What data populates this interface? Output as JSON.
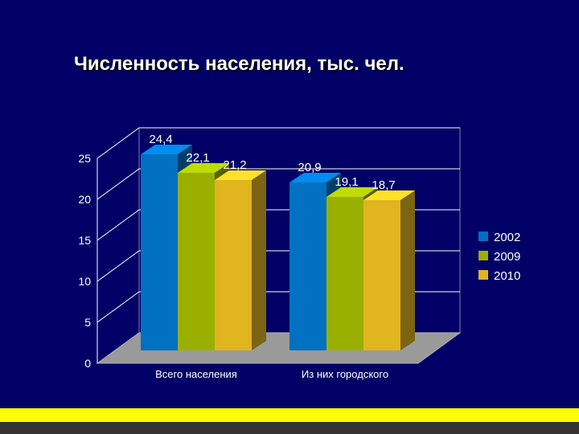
{
  "slide": {
    "title": "Численность населения, тыс. чел."
  },
  "colors": {
    "background": "#000066",
    "series": [
      "#0070c0",
      "#99b000",
      "#e0b520"
    ],
    "bottom_stripe": "#ffff00"
  },
  "chart_data": {
    "type": "bar",
    "style": "3d-clustered-column",
    "title": "",
    "categories": [
      "Всего населения",
      "Из них городского"
    ],
    "series": [
      {
        "name": "2002",
        "values": [
          24.4,
          20.9
        ],
        "labels": [
          "24,4",
          "20,9"
        ]
      },
      {
        "name": "2009",
        "values": [
          22.1,
          19.1
        ],
        "labels": [
          "22,1",
          "19,1"
        ]
      },
      {
        "name": "2010",
        "values": [
          21.2,
          18.7
        ],
        "labels": [
          "21,2",
          "18,7"
        ]
      }
    ],
    "yticks": [
      "0",
      "5",
      "10",
      "15",
      "20",
      "25"
    ],
    "ylim": [
      0,
      25
    ],
    "grid": true,
    "legend": "right"
  }
}
